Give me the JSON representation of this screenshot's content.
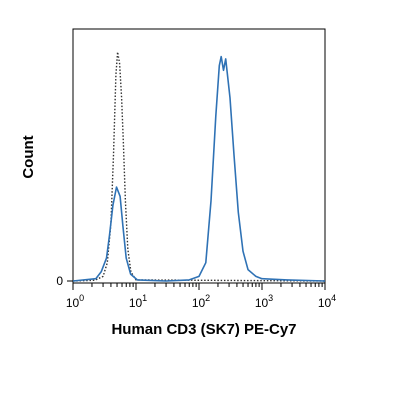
{
  "chart_data": {
    "type": "line",
    "title": "",
    "xlabel": "Human CD3 (SK7) PE-Cy7",
    "ylabel": "Count",
    "x_scale": "log",
    "xlim": [
      1,
      10000
    ],
    "ylim": [
      0,
      100
    ],
    "grid": false,
    "legend": "none",
    "x_ticks": [
      {
        "base": "10",
        "exp": "0",
        "value": 1
      },
      {
        "base": "10",
        "exp": "1",
        "value": 10
      },
      {
        "base": "10",
        "exp": "2",
        "value": 100
      },
      {
        "base": "10",
        "exp": "3",
        "value": 1000
      },
      {
        "base": "10",
        "exp": "4",
        "value": 10000
      }
    ],
    "y_ticks": [
      {
        "label": "0",
        "value": 0
      }
    ],
    "series": [
      {
        "style": "dotted",
        "color": "#333333",
        "points": [
          [
            1,
            0
          ],
          [
            2.2,
            0.3
          ],
          [
            3,
            2
          ],
          [
            3.5,
            8
          ],
          [
            4,
            25
          ],
          [
            4.4,
            55
          ],
          [
            4.8,
            90
          ],
          [
            5.1,
            100
          ],
          [
            5.5,
            95
          ],
          [
            5.9,
            80
          ],
          [
            6.3,
            60
          ],
          [
            6.8,
            35
          ],
          [
            7.4,
            14
          ],
          [
            8.3,
            4
          ],
          [
            10,
            0.5
          ],
          [
            10000,
            0
          ]
        ]
      },
      {
        "style": "solid",
        "color": "#2f72b5",
        "points": [
          [
            1,
            0
          ],
          [
            2.3,
            1
          ],
          [
            2.8,
            4
          ],
          [
            3.4,
            10
          ],
          [
            3.8,
            20
          ],
          [
            4.3,
            33
          ],
          [
            4.9,
            41
          ],
          [
            5.6,
            37
          ],
          [
            6.2,
            24
          ],
          [
            7,
            10
          ],
          [
            8.2,
            3
          ],
          [
            10.5,
            0.5
          ],
          [
            30,
            0
          ],
          [
            70,
            0.5
          ],
          [
            100,
            2
          ],
          [
            128,
            8
          ],
          [
            155,
            35
          ],
          [
            185,
            72
          ],
          [
            210,
            94
          ],
          [
            225,
            98
          ],
          [
            245,
            92
          ],
          [
            265,
            97
          ],
          [
            310,
            80
          ],
          [
            360,
            55
          ],
          [
            420,
            30
          ],
          [
            500,
            13
          ],
          [
            600,
            5
          ],
          [
            800,
            2
          ],
          [
            1000,
            1
          ],
          [
            2500,
            0.5
          ],
          [
            10000,
            0
          ]
        ]
      }
    ]
  }
}
